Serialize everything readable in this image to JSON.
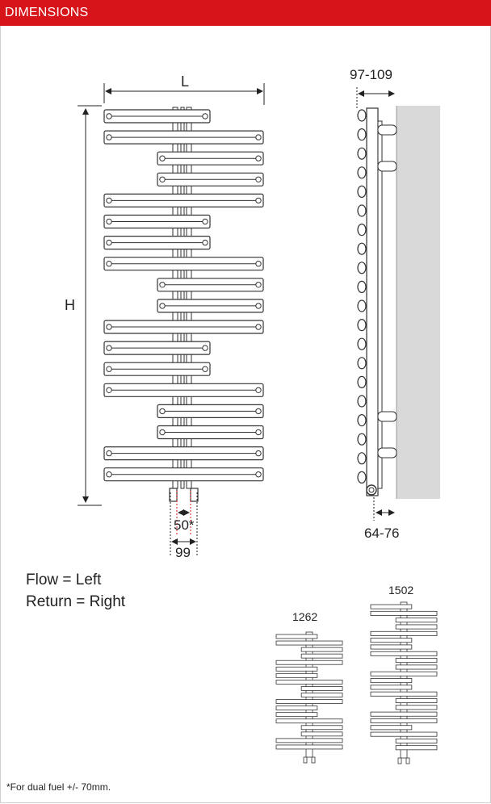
{
  "header": {
    "title": "DIMENSIONS",
    "background_color": "#d7141a",
    "text_color": "#ffffff"
  },
  "front_view": {
    "width_label": "L",
    "height_label": "H",
    "centers_label": "50*",
    "pipe_spacing_label": "99"
  },
  "side_view": {
    "depth_label": "97-109",
    "wall_gap_label": "64-76",
    "wall_color": "#d9d9d9"
  },
  "connections": {
    "flow": "Flow = Left",
    "return": "Return = Right"
  },
  "variants": [
    {
      "label": "1262"
    },
    {
      "label": "1502"
    }
  ],
  "footnote": "*For dual fuel +/- 70mm.",
  "colors": {
    "outline": "#333333",
    "marker": "#d7141a"
  }
}
